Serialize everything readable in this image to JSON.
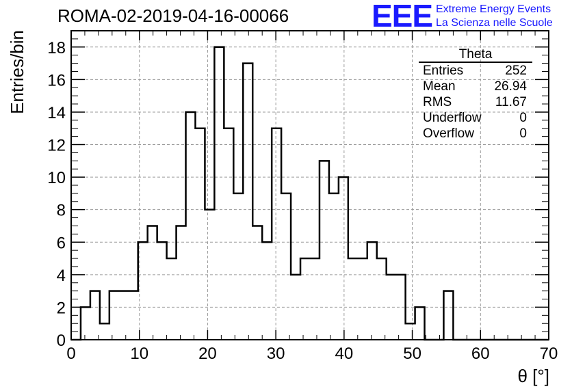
{
  "header": {
    "run_title": "ROMA-02-2019-04-16-00066",
    "logo": "EEE",
    "logo_line1": "Extreme Energy Events",
    "logo_line2": "La Scienza nelle Scuole"
  },
  "stats_box": {
    "name": "Theta",
    "rows": [
      {
        "label": "Entries",
        "value": "252"
      },
      {
        "label": "Mean",
        "value": "26.94"
      },
      {
        "label": "RMS",
        "value": "11.67"
      },
      {
        "label": "Underflow",
        "value": "0"
      },
      {
        "label": "Overflow",
        "value": "0"
      }
    ]
  },
  "colors": {
    "logo": "#1a1aff",
    "line": "#000000",
    "grid": "#999999"
  },
  "chart_data": {
    "type": "histogram",
    "title": "ROMA-02-2019-04-16-00066",
    "xlabel": "θ [°]",
    "ylabel": "Entries/bin",
    "xlim": [
      0,
      70
    ],
    "ylim": [
      0,
      19
    ],
    "xticks": [
      0,
      10,
      20,
      30,
      40,
      50,
      60,
      70
    ],
    "yticks": [
      0,
      2,
      4,
      6,
      8,
      10,
      12,
      14,
      16,
      18
    ],
    "grid": true,
    "bin_width": 1.4,
    "bin_start": 0,
    "values": [
      0,
      2,
      3,
      1,
      3,
      3,
      3,
      6,
      7,
      6,
      5,
      7,
      14,
      13,
      8,
      18,
      13,
      9,
      17,
      7,
      6,
      13,
      9,
      4,
      5,
      5,
      11,
      9,
      10,
      5,
      5,
      6,
      5,
      4,
      4,
      1,
      2,
      0,
      0,
      3,
      0,
      0,
      0,
      0,
      0,
      0,
      0,
      0,
      0,
      0
    ]
  }
}
